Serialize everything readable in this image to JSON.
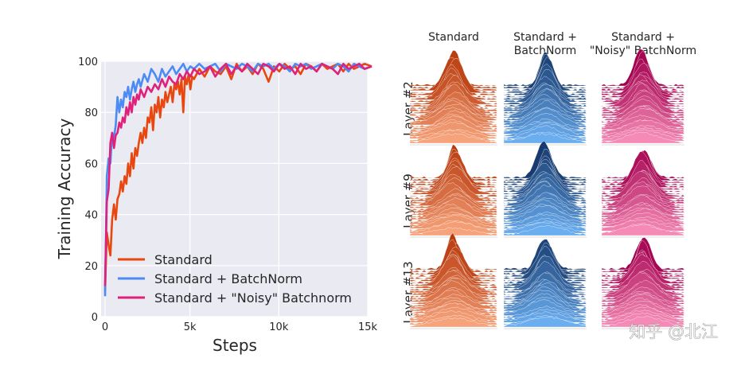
{
  "chart_data": [
    {
      "type": "line",
      "xlabel": "Steps",
      "ylabel": "Training Accuracy",
      "xlim": [
        0,
        15000
      ],
      "ylim": [
        0,
        100
      ],
      "x_ticks": [
        0,
        5000,
        10000,
        15000
      ],
      "x_tick_labels": [
        "0",
        "5k",
        "10k",
        "15k"
      ],
      "y_ticks": [
        0,
        20,
        40,
        60,
        80,
        100
      ],
      "y_tick_labels": [
        "0",
        "20",
        "40",
        "60",
        "80",
        "100"
      ],
      "grid": true,
      "legend_position": "bottom-left",
      "series": [
        {
          "name": "Standard",
          "color": "#e8470f",
          "x": [
            0,
            100,
            200,
            300,
            400,
            500,
            600,
            700,
            800,
            900,
            1000,
            1100,
            1200,
            1300,
            1400,
            1500,
            1600,
            1700,
            1800,
            1900,
            2000,
            2100,
            2200,
            2300,
            2400,
            2500,
            2600,
            2700,
            2800,
            2900,
            3000,
            3100,
            3200,
            3300,
            3400,
            3500,
            3600,
            3700,
            3800,
            3900,
            4000,
            4100,
            4200,
            4300,
            4400,
            4500,
            4600,
            4700,
            4800,
            4900,
            5000,
            5300,
            5600,
            5900,
            6200,
            6500,
            6800,
            7100,
            7400,
            7700,
            8000,
            8300,
            8600,
            8900,
            9200,
            9500,
            9800,
            10100,
            10400,
            10700,
            11000,
            11300,
            11600,
            11900,
            12200,
            12500,
            12800,
            13100,
            13400,
            13700,
            14000,
            14300,
            14600,
            15000
          ],
          "values": [
            10,
            33,
            28,
            24,
            38,
            44,
            38,
            46,
            48,
            53,
            49,
            55,
            52,
            60,
            55,
            64,
            58,
            66,
            63,
            68,
            72,
            68,
            74,
            70,
            78,
            76,
            82,
            73,
            83,
            80,
            86,
            78,
            85,
            82,
            88,
            84,
            87,
            90,
            84,
            91,
            89,
            92,
            87,
            93,
            80,
            94,
            91,
            95,
            89,
            94,
            93,
            97,
            94,
            98,
            96,
            95,
            98,
            93,
            99,
            96,
            98,
            95,
            99,
            97,
            92,
            98,
            96,
            99,
            97,
            98,
            95,
            99,
            98,
            96,
            99,
            97,
            98,
            99,
            96,
            99,
            97,
            98,
            99,
            98
          ]
        },
        {
          "name": "Standard + BatchNorm",
          "color": "#4c8bf5",
          "x": [
            0,
            100,
            200,
            300,
            400,
            500,
            600,
            700,
            800,
            900,
            1000,
            1100,
            1200,
            1300,
            1400,
            1500,
            1600,
            1700,
            1800,
            1900,
            2000,
            2200,
            2400,
            2600,
            2800,
            3000,
            3200,
            3400,
            3600,
            3800,
            4000,
            4200,
            4400,
            4600,
            4800,
            5000,
            5300,
            5600,
            5900,
            6200,
            6500,
            6800,
            7100,
            7400,
            7700,
            8000,
            8300,
            8600,
            8900,
            9200,
            9500,
            9800,
            10100,
            10400,
            10700,
            11000,
            11300,
            11600,
            11900,
            12200,
            12500,
            12800,
            13100,
            13400,
            13700,
            14000,
            14300,
            14600,
            15000
          ],
          "values": [
            8,
            55,
            62,
            60,
            72,
            70,
            75,
            86,
            80,
            85,
            82,
            88,
            86,
            90,
            85,
            89,
            92,
            88,
            91,
            93,
            90,
            95,
            92,
            97,
            95,
            92,
            97,
            94,
            96,
            98,
            95,
            97,
            99,
            96,
            98,
            97,
            99,
            97,
            98,
            99,
            96,
            99,
            98,
            97,
            99,
            98,
            96,
            99,
            98,
            99,
            97,
            99,
            98,
            96,
            99,
            98,
            99,
            97,
            98,
            99,
            98,
            97,
            99,
            98,
            96,
            99,
            98,
            97,
            98
          ]
        },
        {
          "name": "Standard + \"Noisy\" Batchnorm",
          "color": "#e0217c",
          "x": [
            0,
            100,
            200,
            300,
            400,
            500,
            600,
            700,
            800,
            900,
            1000,
            1100,
            1200,
            1300,
            1400,
            1500,
            1600,
            1700,
            1800,
            1900,
            2000,
            2200,
            2400,
            2600,
            2800,
            3000,
            3200,
            3400,
            3600,
            3800,
            4000,
            4200,
            4400,
            4600,
            4800,
            5000,
            5300,
            5600,
            5900,
            6200,
            6500,
            6800,
            7100,
            7400,
            7700,
            8000,
            8300,
            8600,
            8900,
            9200,
            9500,
            9800,
            10100,
            10400,
            10700,
            11000,
            11300,
            11600,
            11900,
            12200,
            12500,
            12800,
            13100,
            13400,
            13700,
            14000,
            14300,
            14600,
            15000
          ],
          "values": [
            12,
            45,
            50,
            68,
            72,
            66,
            71,
            72,
            76,
            74,
            78,
            76,
            82,
            79,
            84,
            80,
            86,
            83,
            87,
            85,
            89,
            86,
            90,
            88,
            91,
            89,
            93,
            90,
            94,
            92,
            91,
            95,
            93,
            96,
            94,
            97,
            95,
            96,
            98,
            94,
            97,
            99,
            95,
            98,
            96,
            99,
            97,
            95,
            99,
            98,
            96,
            99,
            97,
            98,
            95,
            99,
            97,
            98,
            96,
            99,
            98,
            97,
            95,
            99,
            97,
            98,
            99,
            97,
            98
          ]
        }
      ]
    },
    {
      "type": "ridgeline",
      "columns": [
        {
          "label": "Standard",
          "color_top": "#b83a0c",
          "color_bottom": "#f6a27a"
        },
        {
          "label": "Standard +\nBatchNorm",
          "color_top": "#173b70",
          "color_bottom": "#6aaef0"
        },
        {
          "label": "Standard +\n\"Noisy\" BatchNorm",
          "color_top": "#a3004e",
          "color_bottom": "#f48ab5"
        }
      ],
      "rows": [
        {
          "label": "Layer #2"
        },
        {
          "label": "Layer #9"
        },
        {
          "label": "Layer #13"
        }
      ]
    }
  ],
  "watermark": "知乎 @北江"
}
